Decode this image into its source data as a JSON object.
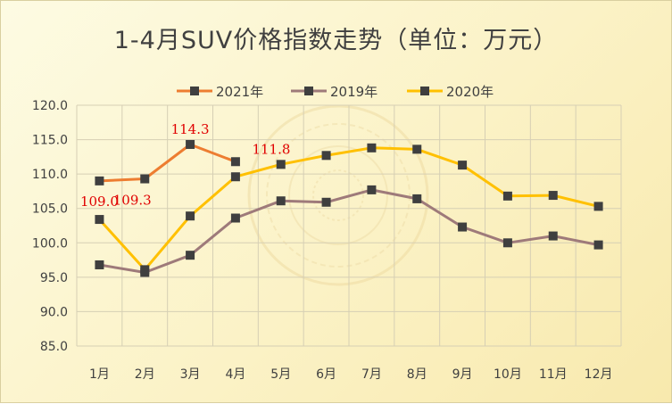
{
  "chart_data": {
    "type": "line",
    "title": "1-4月SUV价格指数走势（单位：万元）",
    "xlabel": "",
    "ylabel": "",
    "categories": [
      "1月",
      "2月",
      "3月",
      "4月",
      "5月",
      "6月",
      "7月",
      "8月",
      "9月",
      "10月",
      "11月",
      "12月"
    ],
    "ylim": [
      85.0,
      120.0
    ],
    "yticks": [
      "85.0",
      "90.0",
      "95.0",
      "100.0",
      "105.0",
      "110.0",
      "115.0",
      "120.0"
    ],
    "grid": true,
    "legend_position": "top",
    "series": [
      {
        "name": "2021年",
        "color": "#ed7d31",
        "values": [
          109.0,
          109.3,
          114.3,
          111.8,
          null,
          null,
          null,
          null,
          null,
          null,
          null,
          null
        ],
        "data_labels": [
          "109.0",
          "109.3",
          "114.3",
          "111.8"
        ]
      },
      {
        "name": "2019年",
        "color": "#9e7a7a",
        "values": [
          96.8,
          95.7,
          98.2,
          103.6,
          106.1,
          105.9,
          107.7,
          106.4,
          102.3,
          100.0,
          101.0,
          99.7
        ]
      },
      {
        "name": "2020年",
        "color": "#ffc000",
        "values": [
          103.4,
          96.1,
          103.9,
          109.6,
          111.4,
          112.7,
          113.8,
          113.6,
          111.3,
          106.8,
          106.9,
          105.3
        ]
      }
    ],
    "marker_color": "#3f3f3f"
  }
}
